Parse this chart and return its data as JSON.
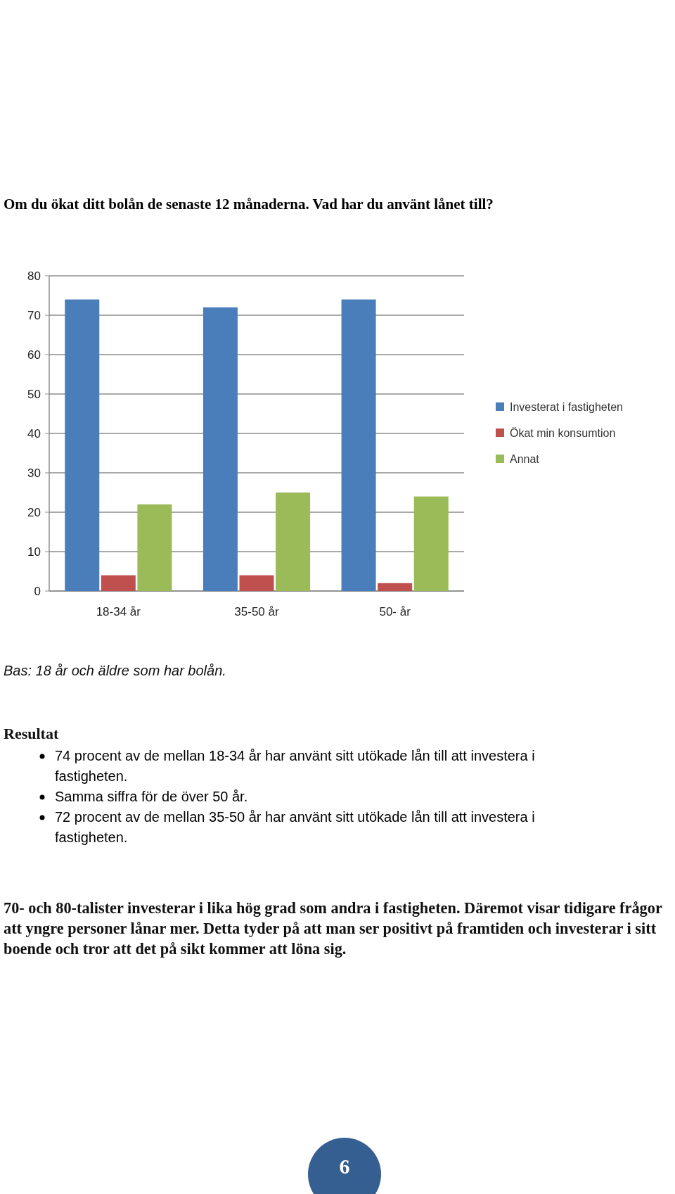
{
  "chart_data": {
    "type": "bar",
    "title": "Om du ökat ditt bolån de senaste 12 månaderna. Vad har du använt lånet till?",
    "categories": [
      "18-34 år",
      "35-50 år",
      "50- år"
    ],
    "series": [
      {
        "name": "Investerat i fastigheten",
        "color": "#4a7ebb",
        "values": [
          74,
          72,
          74
        ]
      },
      {
        "name": "Ökat min konsumtion",
        "color": "#c0504d",
        "values": [
          4,
          4,
          2
        ]
      },
      {
        "name": "Annat",
        "color": "#9bbb59",
        "values": [
          22,
          25,
          24
        ]
      }
    ],
    "ylim": [
      0,
      80
    ],
    "yticks": [
      0,
      10,
      20,
      30,
      40,
      50,
      60,
      70,
      80
    ],
    "grid": "y",
    "legend": "right",
    "annotations": [
      "Bas: 18 år och äldre som har bolån.",
      "Resultat",
      "74 procent av de mellan 18-34 år har använt sitt utökade lån till att investera i fastigheten.",
      "Samma siffra för de över 50 år.",
      "72 procent av de mellan 35-50 år har använt sitt utökade lån till att investera i fastigheten.",
      "70- och 80-talister investerar i lika hög grad som andra i fastigheten. Däremot visar tidigare frågor att yngre personer lånar mer. Detta tyder på att man ser positivt på framtiden och investerar i sitt boende och tror att det på sikt kommer att löna sig.",
      "6"
    ]
  }
}
